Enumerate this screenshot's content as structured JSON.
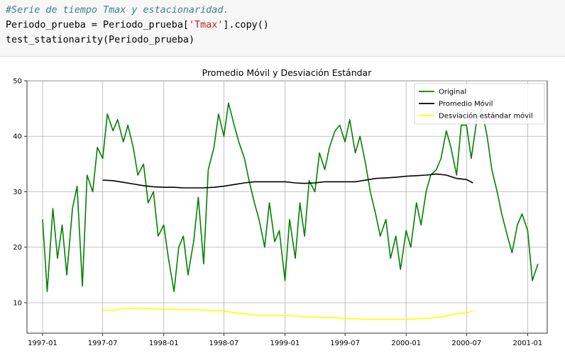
{
  "code_cell": {
    "lines": [
      [
        {
          "text": "#Serie de tiempo Tmax y estacionaridad.",
          "kind": "comment"
        }
      ],
      [
        {
          "text": "Periodo_prueba = Periodo_prueba[",
          "kind": "plain"
        },
        {
          "text": "'Tmax'",
          "kind": "string"
        },
        {
          "text": "].copy()",
          "kind": "plain"
        }
      ],
      [
        {
          "text": "test_stationarity(Periodo_prueba)",
          "kind": "plain"
        }
      ]
    ]
  },
  "chart_data": {
    "type": "line",
    "title": "Promedio Móvil y Desviación Estándar",
    "xlabel": "",
    "ylabel": "",
    "x_axis": "date",
    "xlim": [
      "1996-11-15",
      "2001-03-01"
    ],
    "ylim": [
      4.5,
      50
    ],
    "xticks": [
      "1997-01",
      "1997-07",
      "1998-01",
      "1998-07",
      "1999-01",
      "1999-07",
      "2000-01",
      "2000-07",
      "2001-01"
    ],
    "yticks": [
      10,
      20,
      30,
      40,
      50
    ],
    "grid": true,
    "legend_position": "top-right",
    "series": [
      {
        "name": "Original",
        "color": "#008000",
        "x": [
          "1997-01-01",
          "1997-01-15",
          "1997-02-01",
          "1997-02-15",
          "1997-03-01",
          "1997-03-15",
          "1997-04-01",
          "1997-04-15",
          "1997-05-01",
          "1997-05-15",
          "1997-06-01",
          "1997-06-15",
          "1997-07-01",
          "1997-07-15",
          "1997-08-01",
          "1997-08-15",
          "1997-09-01",
          "1997-09-15",
          "1997-10-01",
          "1997-10-15",
          "1997-11-01",
          "1997-11-15",
          "1997-12-01",
          "1997-12-15",
          "1998-01-01",
          "1998-01-15",
          "1998-02-01",
          "1998-02-15",
          "1998-03-01",
          "1998-03-15",
          "1998-04-01",
          "1998-04-15",
          "1998-05-01",
          "1998-05-15",
          "1998-06-01",
          "1998-06-15",
          "1998-07-01",
          "1998-07-15",
          "1998-08-01",
          "1998-08-15",
          "1998-09-01",
          "1998-09-15",
          "1998-10-01",
          "1998-10-15",
          "1998-11-01",
          "1998-11-15",
          "1998-12-01",
          "1998-12-15",
          "1999-01-01",
          "1999-01-15",
          "1999-02-01",
          "1999-02-15",
          "1999-03-01",
          "1999-03-15",
          "1999-04-01",
          "1999-04-15",
          "1999-05-01",
          "1999-05-15",
          "1999-06-01",
          "1999-06-15",
          "1999-07-01",
          "1999-07-15",
          "1999-08-01",
          "1999-08-15",
          "1999-09-01",
          "1999-09-15",
          "1999-10-01",
          "1999-10-15",
          "1999-11-01",
          "1999-11-15",
          "1999-12-01",
          "1999-12-15",
          "2000-01-01",
          "2000-01-15",
          "2000-02-01",
          "2000-02-15",
          "2000-03-01",
          "2000-03-15",
          "2000-04-01",
          "2000-04-15",
          "2000-05-01",
          "2000-05-15",
          "2000-06-01",
          "2000-06-15",
          "2000-07-01",
          "2000-07-15",
          "2000-08-01",
          "2000-08-15",
          "2000-09-01",
          "2000-09-15",
          "2000-10-01",
          "2000-10-15",
          "2000-11-01",
          "2000-11-15",
          "2000-12-01",
          "2000-12-15",
          "2001-01-01",
          "2001-01-15",
          "2001-02-01"
        ],
        "y": [
          25,
          12,
          27,
          18,
          24,
          15,
          27,
          31,
          13,
          33,
          30,
          38,
          36,
          44,
          41,
          43,
          39,
          42,
          38,
          33,
          35,
          28,
          30,
          22,
          24,
          18,
          12,
          20,
          22,
          15,
          21,
          29,
          17,
          34,
          38,
          44,
          40,
          46,
          42,
          39,
          36,
          32,
          28,
          25,
          20,
          28,
          21,
          23,
          14,
          25,
          18,
          28,
          22,
          32,
          30,
          37,
          34,
          38,
          41,
          42,
          39,
          43,
          37,
          40,
          35,
          30,
          26,
          22,
          25,
          18,
          22,
          16,
          23,
          20,
          28,
          24,
          30,
          33,
          34,
          36,
          41,
          38,
          33,
          42,
          42,
          36,
          43,
          45,
          40,
          34,
          30,
          26,
          22,
          19,
          24,
          26,
          23,
          14,
          17
        ]
      },
      {
        "name": "Promedio Móvil",
        "color": "#000000",
        "x": [
          "1997-07-01",
          "1997-08-01",
          "1997-09-01",
          "1997-10-01",
          "1997-11-01",
          "1997-12-01",
          "1998-01-01",
          "1998-02-01",
          "1998-03-01",
          "1998-04-01",
          "1998-05-01",
          "1998-06-01",
          "1998-07-01",
          "1998-08-01",
          "1998-09-01",
          "1998-10-01",
          "1998-11-01",
          "1998-12-01",
          "1999-01-01",
          "1999-02-01",
          "1999-03-01",
          "1999-04-01",
          "1999-05-01",
          "1999-06-01",
          "1999-07-01",
          "1999-08-01",
          "1999-09-01",
          "1999-10-01",
          "1999-11-01",
          "1999-12-01",
          "2000-01-01",
          "2000-02-01",
          "2000-03-01",
          "2000-04-01",
          "2000-05-01",
          "2000-06-01",
          "2000-07-01",
          "2000-07-20"
        ],
        "y": [
          32.1,
          32.0,
          31.7,
          31.4,
          31.1,
          30.9,
          30.8,
          30.8,
          30.7,
          30.7,
          30.7,
          30.8,
          31.0,
          31.3,
          31.6,
          31.8,
          31.8,
          31.8,
          31.8,
          31.6,
          31.5,
          31.6,
          31.8,
          31.8,
          31.8,
          31.8,
          32.1,
          32.4,
          32.5,
          32.6,
          32.8,
          32.9,
          33.0,
          33.2,
          33.0,
          32.4,
          32.2,
          31.6
        ]
      },
      {
        "name": "Desviación estándar móvil",
        "color": "#ffff00",
        "x": [
          "1997-07-01",
          "1997-08-01",
          "1997-09-01",
          "1997-10-01",
          "1997-11-01",
          "1997-12-01",
          "1998-01-01",
          "1998-02-01",
          "1998-03-01",
          "1998-04-01",
          "1998-05-01",
          "1998-06-01",
          "1998-07-01",
          "1998-08-01",
          "1998-09-01",
          "1998-10-01",
          "1998-11-01",
          "1998-12-01",
          "1999-01-01",
          "1999-02-01",
          "1999-03-01",
          "1999-04-01",
          "1999-05-01",
          "1999-06-01",
          "1999-07-01",
          "1999-08-01",
          "1999-09-01",
          "1999-10-01",
          "1999-11-01",
          "1999-12-01",
          "2000-01-01",
          "2000-02-01",
          "2000-03-01",
          "2000-04-01",
          "2000-05-01",
          "2000-06-01",
          "2000-07-01",
          "2000-07-20"
        ],
        "y": [
          8.7,
          8.6,
          8.9,
          9.0,
          9.0,
          8.9,
          8.8,
          8.8,
          8.7,
          8.7,
          8.7,
          8.6,
          8.5,
          8.2,
          8.0,
          7.8,
          7.7,
          7.7,
          7.7,
          7.6,
          7.5,
          7.4,
          7.3,
          7.3,
          7.2,
          7.1,
          7.0,
          7.0,
          7.0,
          7.0,
          7.0,
          7.1,
          7.2,
          7.3,
          7.6,
          8.0,
          8.1,
          8.6
        ]
      }
    ]
  }
}
